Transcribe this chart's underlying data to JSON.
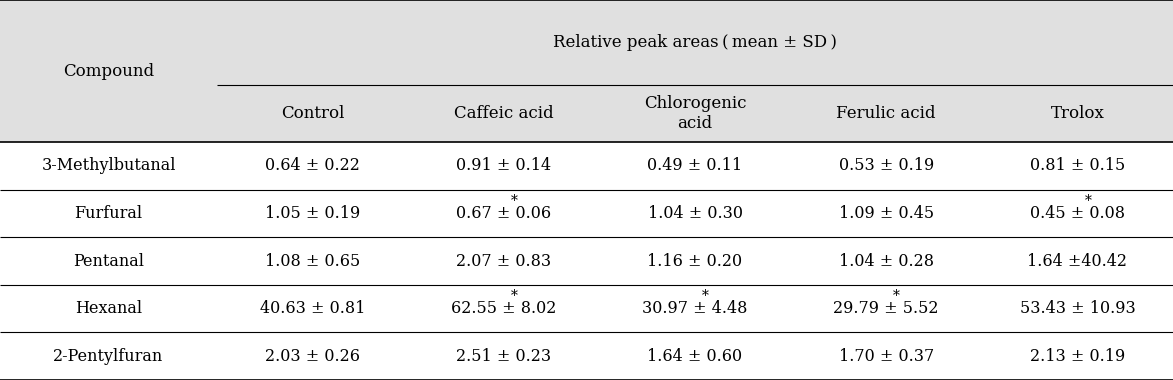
{
  "header_main": "Relative peak areas ( mean ± SD )",
  "col_header_1": "Compound",
  "col_headers": [
    "Control",
    "Caffeic acid",
    "Chlorogenic\nacid",
    "Ferulic acid",
    "Trolox"
  ],
  "rows": [
    {
      "compound": "3-Methylbutanal",
      "values": [
        "0.64 ± 0.22",
        "0.91 ± 0.14",
        "0.49 ± 0.11",
        "0.53 ± 0.19",
        "0.81 ± 0.15"
      ],
      "asterisks": [
        false,
        false,
        false,
        false,
        false
      ]
    },
    {
      "compound": "Furfural",
      "values": [
        "1.05 ± 0.19",
        "0.67 ± 0.06",
        "1.04 ± 0.30",
        "1.09 ± 0.45",
        "0.45 ± 0.08"
      ],
      "asterisks": [
        false,
        true,
        false,
        false,
        true
      ]
    },
    {
      "compound": "Pentanal",
      "values": [
        "1.08 ± 0.65",
        "2.07 ± 0.83",
        "1.16 ± 0.20",
        "1.04 ± 0.28",
        "1.64 ±40.42"
      ],
      "asterisks": [
        false,
        false,
        false,
        false,
        false
      ]
    },
    {
      "compound": "Hexanal",
      "values": [
        "40.63 ± 0.81",
        "62.55 ± 8.02",
        "30.97 ± 4.48",
        "29.79 ± 5.52",
        "53.43 ± 10.93"
      ],
      "asterisks": [
        false,
        true,
        true,
        true,
        false
      ]
    },
    {
      "compound": "2-Pentylfuran",
      "values": [
        "2.03 ± 0.26",
        "2.51 ± 0.23",
        "1.64 ± 0.60",
        "1.70 ± 0.37",
        "2.13 ± 0.19"
      ],
      "asterisks": [
        false,
        false,
        false,
        false,
        false
      ]
    }
  ],
  "header_bg": "#e0e0e0",
  "font_size": 11.5,
  "header_font_size": 12.0,
  "fig_width": 11.73,
  "fig_height": 3.8,
  "dpi": 100
}
